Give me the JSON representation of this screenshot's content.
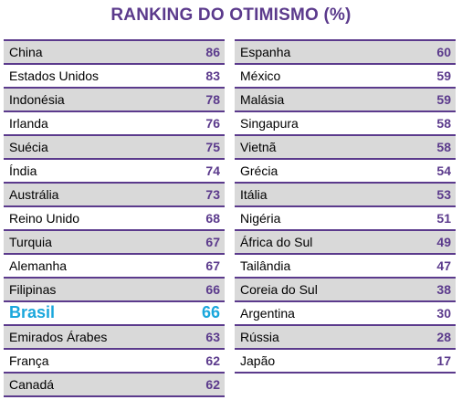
{
  "chart_data": {
    "type": "table",
    "title": "RANKING DO OTIMISMO (%)",
    "columns": [
      {
        "rows": [
          {
            "name": "China",
            "value": 86
          },
          {
            "name": "Estados Unidos",
            "value": 83
          },
          {
            "name": "Indonésia",
            "value": 78
          },
          {
            "name": "Irlanda",
            "value": 76
          },
          {
            "name": "Suécia",
            "value": 75
          },
          {
            "name": "Índia",
            "value": 74
          },
          {
            "name": "Austrália",
            "value": 73
          },
          {
            "name": "Reino Unido",
            "value": 68
          },
          {
            "name": "Turquia",
            "value": 67
          },
          {
            "name": "Alemanha",
            "value": 67
          },
          {
            "name": "Filipinas",
            "value": 66
          },
          {
            "name": "Brasil",
            "value": 66,
            "highlight": true
          },
          {
            "name": "Emirados Árabes",
            "value": 63
          },
          {
            "name": "França",
            "value": 62
          },
          {
            "name": "Canadá",
            "value": 62
          }
        ]
      },
      {
        "rows": [
          {
            "name": "Espanha",
            "value": 60
          },
          {
            "name": "México",
            "value": 59
          },
          {
            "name": "Malásia",
            "value": 59
          },
          {
            "name": "Singapura",
            "value": 58
          },
          {
            "name": "Vietnã",
            "value": 58
          },
          {
            "name": "Grécia",
            "value": 54
          },
          {
            "name": "Itália",
            "value": 53
          },
          {
            "name": "Nigéria",
            "value": 51
          },
          {
            "name": "África do Sul",
            "value": 49
          },
          {
            "name": "Tailândia",
            "value": 47
          },
          {
            "name": "Coreia do Sul",
            "value": 38
          },
          {
            "name": "Argentina",
            "value": 30
          },
          {
            "name": "Rússia",
            "value": 28
          },
          {
            "name": "Japão",
            "value": 17
          }
        ]
      }
    ],
    "colors": {
      "accent": "#5b3a8c",
      "highlight": "#1aa7dc",
      "shade": "#d9d9d9"
    }
  }
}
